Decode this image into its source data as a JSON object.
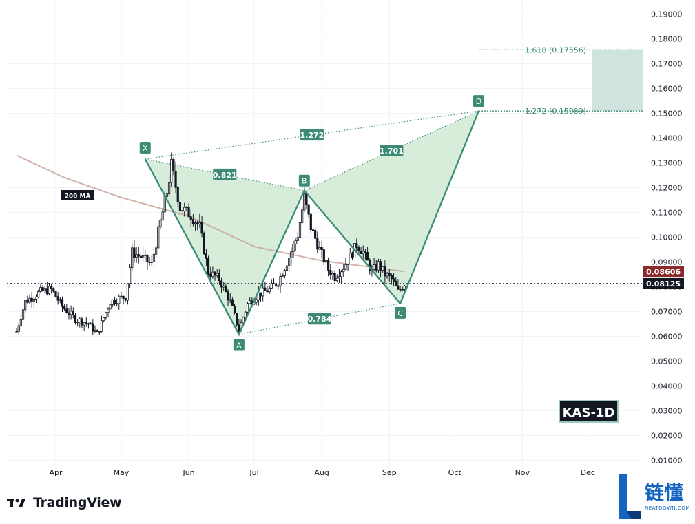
{
  "symbol_badge": "KAS-1D",
  "ma_label": "200 MA",
  "price_tags": {
    "ma_value": "0.08606",
    "last_price": "0.08125"
  },
  "fib_targets": [
    {
      "ratio": 1.618,
      "price": 0.17556,
      "label": "1.618 (0.17556)"
    },
    {
      "ratio": 1.272,
      "price": 0.15089,
      "label": "1.272 (0.15089)"
    }
  ],
  "pattern": {
    "points": [
      {
        "name": "X",
        "date": "2024-05-12",
        "price": 0.1315
      },
      {
        "name": "A",
        "date": "2024-06-24",
        "price": 0.0608
      },
      {
        "name": "B",
        "date": "2024-07-24",
        "price": 0.1188
      },
      {
        "name": "C",
        "date": "2024-09-06",
        "price": 0.0732
      },
      {
        "name": "D",
        "date": "2024-10-12",
        "price": 0.1509
      }
    ],
    "ratios": [
      {
        "label": "0.821",
        "from": "X",
        "to": "B"
      },
      {
        "label": "0.784",
        "from": "A",
        "to": "C"
      },
      {
        "label": "1.701",
        "from": "B",
        "to": "D"
      },
      {
        "label": "1.272",
        "from": "X",
        "to": "D"
      }
    ],
    "colors": {
      "fill": "#c8e6c9",
      "stroke": "#3c8d78",
      "label_bg": "#3d8a76"
    }
  },
  "brand": {
    "name": "TradingView"
  },
  "watermark": {
    "cn": "链懂",
    "en": "NEATDOWN.COM"
  },
  "chart_data": {
    "type": "candlestick",
    "title": "KAS-1D",
    "x_axis": {
      "ticks": [
        "Apr",
        "May",
        "Jun",
        "Jul",
        "Aug",
        "Sep",
        "Oct",
        "Nov",
        "Dec"
      ]
    },
    "y_axis": {
      "ticks": [
        "0.01000",
        "0.02000",
        "0.03000",
        "0.04000",
        "0.05000",
        "0.06000",
        "0.07000",
        "0.08000",
        "0.09000",
        "0.10000",
        "0.11000",
        "0.12000",
        "0.13000",
        "0.14000",
        "0.15000",
        "0.16000",
        "0.17000",
        "0.18000",
        "0.19000"
      ],
      "range": [
        0.0,
        0.2
      ],
      "side": "right"
    },
    "price_path": [
      {
        "date": "2024-03-14",
        "price": 0.062
      },
      {
        "date": "2024-03-18",
        "price": 0.074
      },
      {
        "date": "2024-03-25",
        "price": 0.078
      },
      {
        "date": "2024-03-30",
        "price": 0.079
      },
      {
        "date": "2024-04-04",
        "price": 0.072
      },
      {
        "date": "2024-04-10",
        "price": 0.067
      },
      {
        "date": "2024-04-16",
        "price": 0.065
      },
      {
        "date": "2024-04-20",
        "price": 0.061
      },
      {
        "date": "2024-04-26",
        "price": 0.074
      },
      {
        "date": "2024-05-03",
        "price": 0.076
      },
      {
        "date": "2024-05-06",
        "price": 0.094
      },
      {
        "date": "2024-05-10",
        "price": 0.092
      },
      {
        "date": "2024-05-15",
        "price": 0.089
      },
      {
        "date": "2024-05-18",
        "price": 0.102
      },
      {
        "date": "2024-05-22",
        "price": 0.118
      },
      {
        "date": "2024-05-24",
        "price": 0.129
      },
      {
        "date": "2024-05-28",
        "price": 0.112
      },
      {
        "date": "2024-06-02",
        "price": 0.109
      },
      {
        "date": "2024-06-06",
        "price": 0.104
      },
      {
        "date": "2024-06-10",
        "price": 0.086
      },
      {
        "date": "2024-06-15",
        "price": 0.083
      },
      {
        "date": "2024-06-20",
        "price": 0.074
      },
      {
        "date": "2024-06-24",
        "price": 0.0625
      },
      {
        "date": "2024-06-28",
        "price": 0.073
      },
      {
        "date": "2024-07-03",
        "price": 0.077
      },
      {
        "date": "2024-07-08",
        "price": 0.079
      },
      {
        "date": "2024-07-12",
        "price": 0.082
      },
      {
        "date": "2024-07-17",
        "price": 0.092
      },
      {
        "date": "2024-07-21",
        "price": 0.101
      },
      {
        "date": "2024-07-24",
        "price": 0.116
      },
      {
        "date": "2024-07-27",
        "price": 0.104
      },
      {
        "date": "2024-07-31",
        "price": 0.095
      },
      {
        "date": "2024-08-04",
        "price": 0.087
      },
      {
        "date": "2024-08-07",
        "price": 0.084
      },
      {
        "date": "2024-08-11",
        "price": 0.088
      },
      {
        "date": "2024-08-14",
        "price": 0.092
      },
      {
        "date": "2024-08-17",
        "price": 0.097
      },
      {
        "date": "2024-08-20",
        "price": 0.094
      },
      {
        "date": "2024-08-24",
        "price": 0.086
      },
      {
        "date": "2024-08-27",
        "price": 0.089
      },
      {
        "date": "2024-08-30",
        "price": 0.085
      },
      {
        "date": "2024-09-02",
        "price": 0.083
      },
      {
        "date": "2024-09-05",
        "price": 0.078
      },
      {
        "date": "2024-09-08",
        "price": 0.0812
      }
    ],
    "moving_average": {
      "name": "200 MA",
      "points": [
        {
          "date": "2024-03-14",
          "price": 0.133
        },
        {
          "date": "2024-04-05",
          "price": 0.124
        },
        {
          "date": "2024-05-01",
          "price": 0.116
        },
        {
          "date": "2024-06-01",
          "price": 0.1085
        },
        {
          "date": "2024-07-01",
          "price": 0.0962
        },
        {
          "date": "2024-08-01",
          "price": 0.0905
        },
        {
          "date": "2024-09-08",
          "price": 0.0861
        }
      ]
    },
    "last_price": 0.08125,
    "ma_value": 0.08606
  }
}
